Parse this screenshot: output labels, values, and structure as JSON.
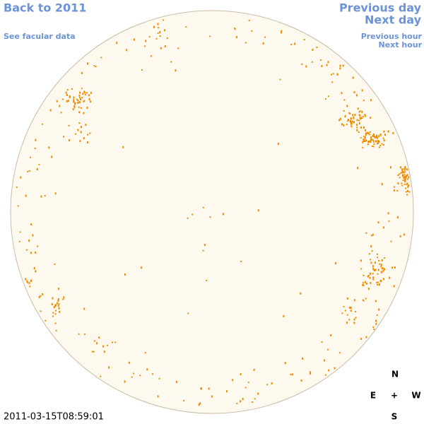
{
  "navigation": {
    "back": "Back to 2011",
    "facular": "See facular data",
    "previous_day": "Previous day",
    "next_day": "Next day",
    "previous_hour": "Previous hour",
    "next_hour": "Next hour"
  },
  "timestamp": "2011-03-15T08:59:01",
  "compass": {
    "north": "N",
    "east": "E",
    "center": "+",
    "west": "W",
    "south": "S"
  }
}
